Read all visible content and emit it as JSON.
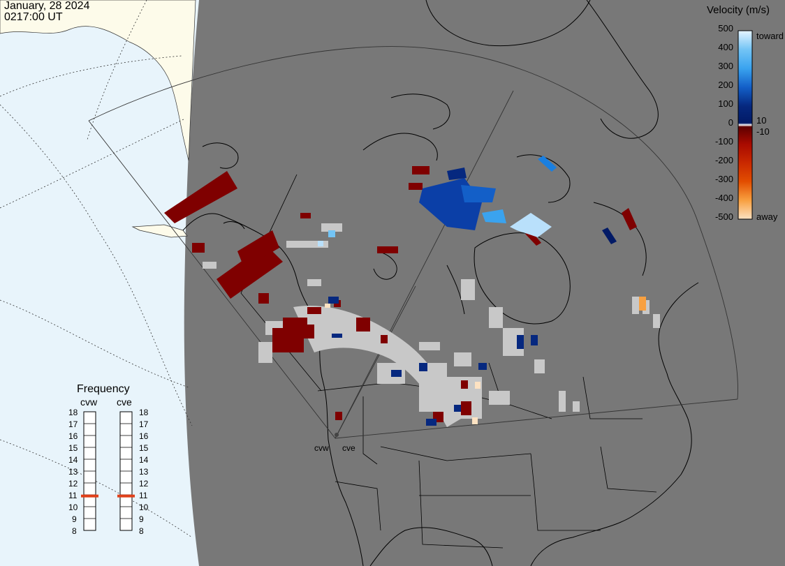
{
  "header": {
    "date": "January, 28 2024",
    "time": "0217:00 UT"
  },
  "legend": {
    "title": "Velocity (m/s)",
    "ticks": [
      "500",
      "400",
      "300",
      "200",
      "100",
      "10",
      "0",
      "-10",
      "-100",
      "-200",
      "-300",
      "-400",
      "-500"
    ],
    "toward_label": "toward",
    "away_label": "away",
    "colors": {
      "toward": [
        "#e6f4ff",
        "#b9e0fb",
        "#73c4f5",
        "#3aa3ef",
        "#1a7fe0",
        "#135fc8",
        "#0b3fa7",
        "#06287f",
        "#021a66"
      ],
      "away": [
        "#5e0000",
        "#7f0000",
        "#a80a00",
        "#c92800",
        "#e24d00",
        "#f27c10",
        "#f8a040",
        "#fbc684",
        "#fde2c2"
      ]
    }
  },
  "frequency": {
    "title": "Frequency",
    "sites": [
      {
        "name": "cvw",
        "value": 10.9
      },
      {
        "name": "cve",
        "value": 10.9
      }
    ],
    "scale": [
      "18",
      "17",
      "16",
      "15",
      "14",
      "13",
      "12",
      "11",
      "10",
      "9",
      "8"
    ]
  },
  "radars": {
    "west_label": "cvw",
    "east_label": "cve"
  },
  "colors": {
    "map_bg": "#787878",
    "ocean": "#e8f4fb",
    "land_day": "#fdfbea",
    "bar_marker": "#e0401a",
    "ground_scatter": "#c8c8c8"
  }
}
